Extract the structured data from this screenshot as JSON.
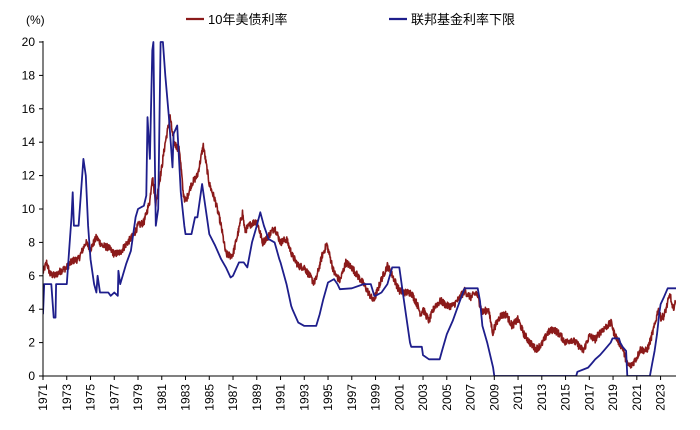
{
  "chart_data": {
    "type": "line",
    "title": "",
    "xlabel": "",
    "ylabel": "(%)",
    "xlim": [
      1971,
      2024.3
    ],
    "ylim": [
      0,
      20
    ],
    "y_ticks": [
      0,
      2,
      4,
      6,
      8,
      10,
      12,
      14,
      16,
      18,
      20
    ],
    "x_ticks": [
      "1971",
      "1973",
      "1975",
      "1977",
      "1979",
      "1981",
      "1983",
      "1985",
      "1987",
      "1989",
      "1991",
      "1993",
      "1995",
      "1997",
      "1999",
      "2001",
      "2003",
      "2005",
      "2007",
      "2009",
      "2011",
      "2013",
      "2015",
      "2017",
      "2019",
      "2021",
      "2023"
    ],
    "grid": false,
    "legend_position": "top",
    "series": [
      {
        "name": "10年美债利率",
        "color": "#8B1A1A",
        "noise": 0.22,
        "points": [
          [
            1971.0,
            6.2
          ],
          [
            1971.3,
            6.8
          ],
          [
            1971.6,
            6.1
          ],
          [
            1972.0,
            6.0
          ],
          [
            1972.5,
            6.3
          ],
          [
            1973.0,
            6.5
          ],
          [
            1973.5,
            6.9
          ],
          [
            1974.0,
            7.0
          ],
          [
            1974.6,
            8.0
          ],
          [
            1975.0,
            7.6
          ],
          [
            1975.5,
            8.3
          ],
          [
            1976.0,
            7.8
          ],
          [
            1976.5,
            7.7
          ],
          [
            1977.0,
            7.3
          ],
          [
            1977.5,
            7.4
          ],
          [
            1978.0,
            7.9
          ],
          [
            1978.6,
            8.4
          ],
          [
            1979.0,
            9.0
          ],
          [
            1979.5,
            9.2
          ],
          [
            1980.0,
            10.5
          ],
          [
            1980.2,
            12.0
          ],
          [
            1980.5,
            10.3
          ],
          [
            1981.0,
            12.5
          ],
          [
            1981.3,
            14.0
          ],
          [
            1981.7,
            15.5
          ],
          [
            1982.0,
            14.0
          ],
          [
            1982.5,
            13.5
          ],
          [
            1982.8,
            11.0
          ],
          [
            1983.0,
            10.4
          ],
          [
            1983.5,
            11.5
          ],
          [
            1984.0,
            12.0
          ],
          [
            1984.5,
            13.8
          ],
          [
            1985.0,
            11.5
          ],
          [
            1985.5,
            10.5
          ],
          [
            1986.0,
            9.0
          ],
          [
            1986.4,
            7.3
          ],
          [
            1986.8,
            7.2
          ],
          [
            1987.0,
            7.3
          ],
          [
            1987.5,
            8.8
          ],
          [
            1987.8,
            9.8
          ],
          [
            1988.0,
            8.7
          ],
          [
            1988.5,
            9.1
          ],
          [
            1989.0,
            9.3
          ],
          [
            1989.5,
            8.0
          ],
          [
            1990.0,
            8.4
          ],
          [
            1990.5,
            8.9
          ],
          [
            1991.0,
            8.0
          ],
          [
            1991.5,
            8.2
          ],
          [
            1992.0,
            7.2
          ],
          [
            1992.5,
            6.6
          ],
          [
            1993.0,
            6.5
          ],
          [
            1993.8,
            5.6
          ],
          [
            1994.0,
            5.8
          ],
          [
            1994.5,
            7.2
          ],
          [
            1994.9,
            7.9
          ],
          [
            1995.0,
            7.6
          ],
          [
            1995.5,
            6.2
          ],
          [
            1996.0,
            5.7
          ],
          [
            1996.5,
            6.8
          ],
          [
            1997.0,
            6.5
          ],
          [
            1997.5,
            6.0
          ],
          [
            1998.0,
            5.5
          ],
          [
            1998.8,
            4.5
          ],
          [
            1999.0,
            4.8
          ],
          [
            1999.5,
            5.8
          ],
          [
            2000.0,
            6.6
          ],
          [
            2000.5,
            5.9
          ],
          [
            2001.0,
            5.1
          ],
          [
            2001.5,
            5.0
          ],
          [
            2002.0,
            5.0
          ],
          [
            2002.5,
            4.3
          ],
          [
            2002.8,
            3.7
          ],
          [
            2003.0,
            4.0
          ],
          [
            2003.5,
            3.3
          ],
          [
            2004.0,
            4.2
          ],
          [
            2004.5,
            4.5
          ],
          [
            2005.0,
            4.2
          ],
          [
            2005.5,
            4.2
          ],
          [
            2006.0,
            4.6
          ],
          [
            2006.5,
            5.1
          ],
          [
            2007.0,
            4.7
          ],
          [
            2007.5,
            5.0
          ],
          [
            2008.0,
            3.8
          ],
          [
            2008.5,
            4.0
          ],
          [
            2008.9,
            2.5
          ],
          [
            2009.0,
            2.9
          ],
          [
            2009.5,
            3.6
          ],
          [
            2010.0,
            3.7
          ],
          [
            2010.5,
            3.0
          ],
          [
            2011.0,
            3.4
          ],
          [
            2011.5,
            2.5
          ],
          [
            2012.0,
            2.0
          ],
          [
            2012.5,
            1.6
          ],
          [
            2013.0,
            1.9
          ],
          [
            2013.5,
            2.6
          ],
          [
            2014.0,
            2.8
          ],
          [
            2014.5,
            2.5
          ],
          [
            2015.0,
            2.0
          ],
          [
            2015.5,
            2.2
          ],
          [
            2016.0,
            1.9
          ],
          [
            2016.5,
            1.5
          ],
          [
            2017.0,
            2.4
          ],
          [
            2017.5,
            2.2
          ],
          [
            2018.0,
            2.7
          ],
          [
            2018.5,
            3.0
          ],
          [
            2018.9,
            3.2
          ],
          [
            2019.0,
            2.7
          ],
          [
            2019.5,
            2.0
          ],
          [
            2019.8,
            1.7
          ],
          [
            2020.2,
            0.7
          ],
          [
            2020.5,
            0.6
          ],
          [
            2021.0,
            1.1
          ],
          [
            2021.3,
            1.6
          ],
          [
            2021.8,
            1.5
          ],
          [
            2022.0,
            1.8
          ],
          [
            2022.5,
            3.0
          ],
          [
            2022.8,
            4.0
          ],
          [
            2023.0,
            3.5
          ],
          [
            2023.3,
            3.6
          ],
          [
            2023.8,
            4.9
          ],
          [
            2024.0,
            4.0
          ],
          [
            2024.3,
            4.4
          ]
        ]
      },
      {
        "name": "联邦基金利率下限",
        "color": "#1E1E8C",
        "noise": 0,
        "points": [
          [
            1971.0,
            3.7
          ],
          [
            1971.1,
            5.5
          ],
          [
            1971.7,
            5.5
          ],
          [
            1971.9,
            3.5
          ],
          [
            1972.05,
            3.5
          ],
          [
            1972.1,
            5.5
          ],
          [
            1973.0,
            5.5
          ],
          [
            1973.2,
            7.5
          ],
          [
            1973.4,
            9.5
          ],
          [
            1973.5,
            11.0
          ],
          [
            1973.6,
            9.0
          ],
          [
            1974.0,
            9.0
          ],
          [
            1974.2,
            11.0
          ],
          [
            1974.4,
            13.0
          ],
          [
            1974.6,
            12.0
          ],
          [
            1974.8,
            9.0
          ],
          [
            1975.0,
            7.0
          ],
          [
            1975.3,
            5.5
          ],
          [
            1975.5,
            5.0
          ],
          [
            1975.6,
            6.0
          ],
          [
            1975.8,
            5.0
          ],
          [
            1976.0,
            5.0
          ],
          [
            1976.5,
            5.0
          ],
          [
            1976.7,
            4.8
          ],
          [
            1977.0,
            5.0
          ],
          [
            1977.3,
            4.8
          ],
          [
            1977.35,
            6.3
          ],
          [
            1977.5,
            5.5
          ],
          [
            1978.0,
            6.7
          ],
          [
            1978.4,
            7.5
          ],
          [
            1978.8,
            9.5
          ],
          [
            1979.0,
            10.0
          ],
          [
            1979.5,
            10.2
          ],
          [
            1979.7,
            10.8
          ],
          [
            1979.8,
            15.5
          ],
          [
            1980.0,
            13.0
          ],
          [
            1980.2,
            19.5
          ],
          [
            1980.3,
            20.0
          ],
          [
            1980.4,
            14.0
          ],
          [
            1980.5,
            9.0
          ],
          [
            1980.7,
            10.0
          ],
          [
            1980.9,
            20.0
          ],
          [
            1981.1,
            20.0
          ],
          [
            1981.3,
            18.0
          ],
          [
            1981.6,
            15.5
          ],
          [
            1981.9,
            12.5
          ],
          [
            1982.0,
            14.5
          ],
          [
            1982.3,
            15.0
          ],
          [
            1982.6,
            11.0
          ],
          [
            1982.9,
            9.0
          ],
          [
            1983.0,
            8.5
          ],
          [
            1983.5,
            8.5
          ],
          [
            1983.8,
            9.5
          ],
          [
            1984.0,
            9.5
          ],
          [
            1984.4,
            11.5
          ],
          [
            1984.8,
            9.5
          ],
          [
            1985.0,
            8.5
          ],
          [
            1985.5,
            7.8
          ],
          [
            1986.0,
            7.0
          ],
          [
            1986.4,
            6.5
          ],
          [
            1986.8,
            5.9
          ],
          [
            1987.0,
            6.0
          ],
          [
            1987.5,
            6.8
          ],
          [
            1987.9,
            6.8
          ],
          [
            1988.2,
            6.5
          ],
          [
            1988.6,
            8.0
          ],
          [
            1989.0,
            9.0
          ],
          [
            1989.3,
            9.8
          ],
          [
            1989.6,
            9.0
          ],
          [
            1990.0,
            8.2
          ],
          [
            1990.5,
            8.0
          ],
          [
            1990.9,
            7.0
          ],
          [
            1991.0,
            6.8
          ],
          [
            1991.5,
            5.5
          ],
          [
            1991.9,
            4.2
          ],
          [
            1992.0,
            4.0
          ],
          [
            1992.5,
            3.2
          ],
          [
            1993.0,
            3.0
          ],
          [
            1994.0,
            3.0
          ],
          [
            1994.3,
            3.7
          ],
          [
            1994.6,
            4.6
          ],
          [
            1995.0,
            5.6
          ],
          [
            1995.5,
            5.8
          ],
          [
            1995.8,
            5.5
          ],
          [
            1996.0,
            5.2
          ],
          [
            1997.0,
            5.25
          ],
          [
            1998.0,
            5.5
          ],
          [
            1998.6,
            5.5
          ],
          [
            1998.9,
            4.8
          ],
          [
            1999.0,
            4.8
          ],
          [
            1999.5,
            5.0
          ],
          [
            2000.0,
            5.5
          ],
          [
            2000.4,
            6.5
          ],
          [
            2001.0,
            6.5
          ],
          [
            2001.3,
            5.0
          ],
          [
            2001.6,
            3.5
          ],
          [
            2001.9,
            2.0
          ],
          [
            2002.0,
            1.75
          ],
          [
            2002.9,
            1.75
          ],
          [
            2003.0,
            1.25
          ],
          [
            2003.5,
            1.0
          ],
          [
            2004.4,
            1.0
          ],
          [
            2004.6,
            1.5
          ],
          [
            2005.0,
            2.5
          ],
          [
            2005.5,
            3.3
          ],
          [
            2006.0,
            4.3
          ],
          [
            2006.5,
            5.25
          ],
          [
            2007.6,
            5.25
          ],
          [
            2007.8,
            4.5
          ],
          [
            2008.0,
            3.0
          ],
          [
            2008.4,
            2.0
          ],
          [
            2008.9,
            0.5
          ],
          [
            2009.0,
            0.0
          ],
          [
            2015.9,
            0.0
          ],
          [
            2016.0,
            0.25
          ],
          [
            2016.9,
            0.5
          ],
          [
            2017.2,
            0.75
          ],
          [
            2017.5,
            1.0
          ],
          [
            2017.9,
            1.25
          ],
          [
            2018.2,
            1.5
          ],
          [
            2018.5,
            1.75
          ],
          [
            2018.8,
            2.0
          ],
          [
            2018.95,
            2.25
          ],
          [
            2019.5,
            2.25
          ],
          [
            2019.6,
            2.0
          ],
          [
            2019.8,
            1.75
          ],
          [
            2020.1,
            1.5
          ],
          [
            2020.2,
            0.0
          ],
          [
            2022.1,
            0.0
          ],
          [
            2022.3,
            0.75
          ],
          [
            2022.5,
            1.5
          ],
          [
            2022.7,
            2.5
          ],
          [
            2022.9,
            3.8
          ],
          [
            2023.0,
            4.3
          ],
          [
            2023.3,
            4.75
          ],
          [
            2023.6,
            5.25
          ],
          [
            2024.3,
            5.25
          ]
        ]
      }
    ]
  }
}
